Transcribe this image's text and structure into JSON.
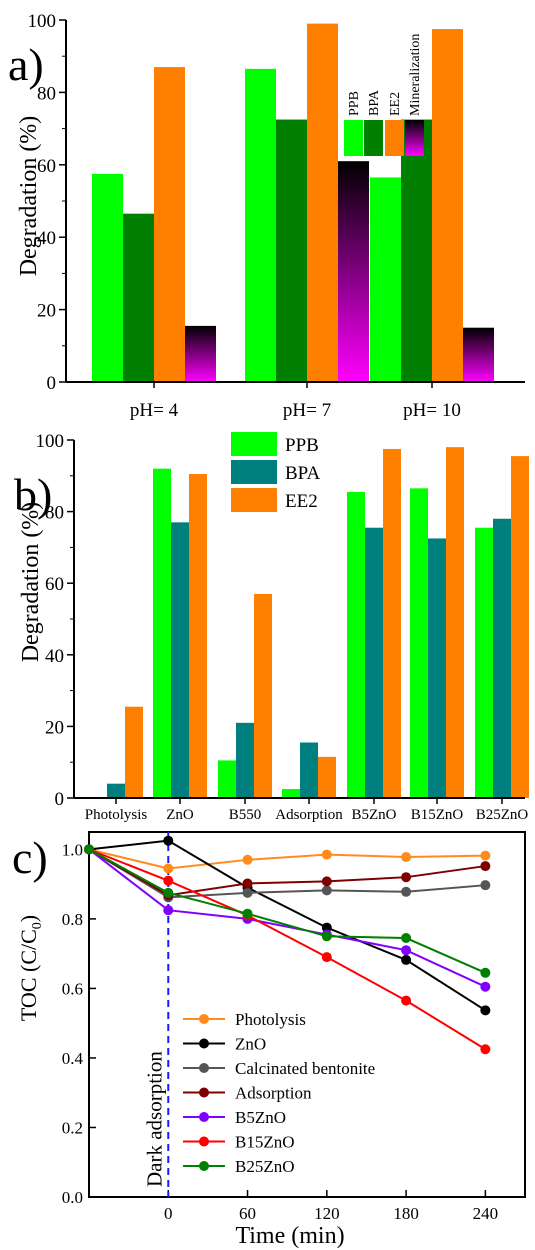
{
  "chart_data": [
    {
      "panel": "a)",
      "type": "bar",
      "ylabel": "Degradation (%)",
      "ylim": [
        0,
        100
      ],
      "yticks": [
        0,
        20,
        40,
        60,
        80,
        100
      ],
      "categories": [
        "pH= 4",
        "pH= 7",
        "pH= 10"
      ],
      "series": [
        {
          "name": "PPB",
          "color": "#00ff00",
          "values": [
            57.5,
            86.5,
            56.5
          ]
        },
        {
          "name": "BPA",
          "color": "#007f00",
          "values": [
            46.5,
            72.5,
            72.5
          ]
        },
        {
          "name": "EE2",
          "color": "#ff8000",
          "values": [
            87,
            99,
            97.5
          ]
        },
        {
          "name": "Mineralization",
          "color": "#000000",
          "gradient_to": "#ff00ff",
          "values": [
            15.5,
            61,
            15
          ]
        }
      ],
      "legend": "inside, top-center, labels rotated vertically",
      "grid": false
    },
    {
      "panel": "b)",
      "type": "bar",
      "ylabel": "Degradation (%)",
      "ylim": [
        0,
        100
      ],
      "yticks": [
        0,
        20,
        40,
        60,
        80,
        100
      ],
      "categories": [
        "Photolysis",
        "ZnO",
        "B550",
        "Adsorption",
        "B5ZnO",
        "B15ZnO",
        "B25ZnO"
      ],
      "series": [
        {
          "name": "PPB",
          "color": "#00ff00",
          "values": [
            0,
            92,
            10.5,
            2.5,
            85.5,
            86.5,
            75.5
          ]
        },
        {
          "name": "BPA",
          "color": "#007f7f",
          "values": [
            4,
            77,
            21,
            15.5,
            75.5,
            72.5,
            78
          ]
        },
        {
          "name": "EE2",
          "color": "#ff8000",
          "values": [
            25.5,
            90.5,
            57,
            11.5,
            97.5,
            98,
            95.5
          ]
        }
      ],
      "legend": "inside, top-left",
      "grid": false
    },
    {
      "panel": "c)",
      "type": "line",
      "xlabel": "Time (min)",
      "ylabel_prefix": "TOC (C/C",
      "ylabel_sub": "0",
      "ylabel_suffix": ")",
      "xlim": [
        -60,
        270
      ],
      "ylim": [
        0,
        1.05
      ],
      "xticks": [
        0,
        60,
        120,
        180,
        240
      ],
      "yticks": [
        "0.0",
        "0.2",
        "0.4",
        "0.6",
        "0.8",
        "1.0"
      ],
      "x": [
        -60,
        0,
        60,
        120,
        180,
        240
      ],
      "annotation": "Dark adsorption",
      "annotation_x": 0,
      "series": [
        {
          "name": "Photolysis",
          "color": "#ff8c1a",
          "values": [
            1.0,
            0.945,
            0.97,
            0.985,
            0.978,
            0.982
          ]
        },
        {
          "name": "ZnO",
          "color": "#000000",
          "values": [
            1.0,
            1.025,
            0.89,
            0.775,
            0.682,
            0.537
          ]
        },
        {
          "name": "Calcinated bentonite",
          "color": "#555555",
          "values": [
            1.0,
            0.862,
            0.875,
            0.882,
            0.878,
            0.897
          ]
        },
        {
          "name": "Adsorption",
          "color": "#7f0000",
          "values": [
            1.0,
            0.868,
            0.902,
            0.908,
            0.92,
            0.952
          ]
        },
        {
          "name": "B5ZnO",
          "color": "#8000ff",
          "values": [
            1.0,
            0.825,
            0.8,
            0.755,
            0.71,
            0.605
          ]
        },
        {
          "name": "B15ZnO",
          "color": "#ff0000",
          "values": [
            1.0,
            0.91,
            0.81,
            0.69,
            0.565,
            0.425
          ]
        },
        {
          "name": "B25ZnO",
          "color": "#007f00",
          "values": [
            1.0,
            0.875,
            0.815,
            0.75,
            0.745,
            0.645
          ]
        }
      ],
      "legend": "inside, lower-left",
      "grid": false
    }
  ]
}
